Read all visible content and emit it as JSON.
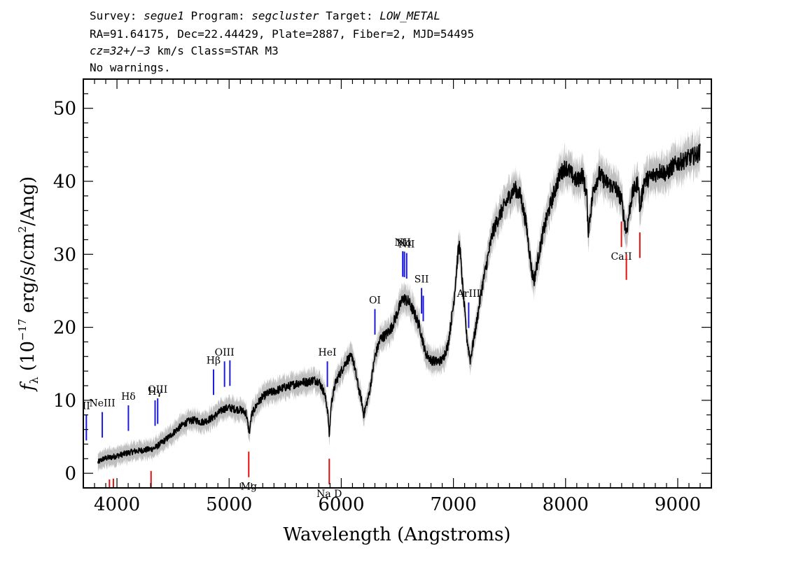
{
  "header": {
    "survey_label": "Survey:",
    "survey": "segue1",
    "program_label": "Program:",
    "program": "segcluster",
    "target_label": "Target:",
    "target": "LOW_METAL",
    "line2": "RA=91.64175, Dec=22.44429, Plate=2887, Fiber=2, MJD=54495",
    "cz": "cz=32+/−3",
    "cz_rest": " km/s Class=STAR M3",
    "warnings": "No warnings."
  },
  "colors": {
    "flux": "#000000",
    "error": "#bfbfbf",
    "emission_lines": "#1a1adc",
    "absorption_lines": "#e01010",
    "axes": "#000000"
  },
  "chart_data": {
    "type": "line",
    "xlabel": "Wavelength (Angstroms)",
    "ylabel_parts": {
      "f": "f",
      "sub": "λ",
      "pre": "(10",
      "exp1": "−17",
      "mid": " erg/s/cm",
      "exp2": "2",
      "post": "/Ang)"
    },
    "xlim": [
      3700,
      9300
    ],
    "ylim": [
      -2,
      54
    ],
    "xticks": [
      4000,
      5000,
      6000,
      7000,
      8000,
      9000
    ],
    "yticks": [
      0,
      10,
      20,
      30,
      40,
      50
    ],
    "grid": false,
    "series": [
      {
        "values_description_free": true,
        "x": [
          3830,
          3880,
          3950,
          4000,
          4050,
          4100,
          4150,
          4200,
          4250,
          4300,
          4340,
          4400,
          4450,
          4500,
          4550,
          4600,
          4650,
          4700,
          4750,
          4800,
          4850,
          4900,
          4950,
          5000,
          5050,
          5100,
          5150,
          5180,
          5200,
          5250,
          5300,
          5350,
          5400,
          5450,
          5500,
          5550,
          5600,
          5650,
          5700,
          5750,
          5800,
          5850,
          5880,
          5893,
          5910,
          5950,
          6000,
          6050,
          6100,
          6150,
          6180,
          6200,
          6250,
          6300,
          6350,
          6400,
          6450,
          6500,
          6550,
          6600,
          6650,
          6700,
          6750,
          6800,
          6850,
          6900,
          6950,
          7000,
          7040,
          7055,
          7080,
          7120,
          7150,
          7200,
          7250,
          7300,
          7350,
          7400,
          7450,
          7500,
          7550,
          7600,
          7650,
          7700,
          7720,
          7750,
          7800,
          7850,
          7900,
          7950,
          8000,
          8050,
          8100,
          8150,
          8190,
          8200,
          8250,
          8300,
          8350,
          8400,
          8450,
          8498,
          8520,
          8542,
          8580,
          8600,
          8650,
          8662,
          8700,
          8750,
          8800,
          8850,
          8900,
          8950,
          9000,
          9050,
          9100,
          9150,
          9200
        ],
        "y": [
          1.5,
          2.0,
          2.2,
          2.4,
          2.6,
          2.8,
          3.0,
          3.1,
          3.2,
          3.3,
          3.5,
          4.2,
          4.8,
          5.5,
          6.2,
          6.8,
          7.2,
          7.3,
          7.0,
          7.2,
          7.6,
          8.2,
          8.8,
          9.0,
          8.8,
          8.7,
          8.3,
          5.5,
          8.0,
          9.5,
          10.5,
          11.0,
          11.2,
          11.5,
          11.8,
          12.0,
          12.3,
          12.5,
          12.5,
          12.8,
          12.6,
          11.0,
          8.5,
          5.0,
          9.5,
          12.5,
          14.0,
          15.5,
          16.0,
          12.0,
          10.0,
          8.0,
          11.0,
          16.0,
          18.5,
          19.0,
          20.0,
          22.0,
          24.0,
          23.5,
          22.0,
          20.0,
          16.5,
          15.5,
          15.3,
          15.5,
          17.5,
          23.0,
          30.0,
          31.5,
          26.0,
          18.5,
          15.5,
          20.0,
          25.0,
          29.0,
          33.0,
          35.0,
          36.5,
          38.0,
          39.0,
          38.0,
          34.0,
          27.5,
          26.5,
          29.0,
          33.0,
          36.0,
          38.5,
          41.0,
          42.0,
          41.0,
          40.0,
          41.0,
          38.0,
          33.0,
          39.0,
          41.0,
          40.0,
          39.5,
          39.0,
          37.5,
          35.0,
          33.0,
          37.0,
          38.5,
          40.0,
          36.0,
          40.0,
          40.5,
          41.0,
          41.5,
          41.0,
          42.0,
          42.5,
          42.8,
          43.2,
          43.5,
          44.0
        ]
      }
    ],
    "line_markers": [
      {
        "label": "Na D",
        "wavelength": 5893,
        "kind": "absorption"
      },
      {
        "label": "Mg",
        "wavelength": 5175,
        "kind": "absorption"
      },
      {
        "label": "CaII",
        "wavelength": 8498,
        "kind": "absorption"
      },
      {
        "label": "",
        "wavelength": 8542,
        "kind": "absorption"
      },
      {
        "label": "",
        "wavelength": 8662,
        "kind": "absorption"
      },
      {
        "label": "",
        "wavelength": 4304,
        "kind": "absorption"
      },
      {
        "label": "",
        "wavelength": 3933,
        "kind": "absorption"
      },
      {
        "label": "",
        "wavelength": 3968,
        "kind": "absorption"
      },
      {
        "label": "II",
        "wavelength": 3727,
        "kind": "emission"
      },
      {
        "label": "NeIII",
        "wavelength": 3869,
        "kind": "emission"
      },
      {
        "label": "Hδ",
        "wavelength": 4102,
        "kind": "emission"
      },
      {
        "label": "Hγ",
        "wavelength": 4340,
        "kind": "emission"
      },
      {
        "label": "OIII",
        "wavelength": 4363,
        "kind": "emission"
      },
      {
        "label": "Hβ",
        "wavelength": 4861,
        "kind": "emission"
      },
      {
        "label": "OIII",
        "wavelength": 4959,
        "kind": "emission"
      },
      {
        "label": "",
        "wavelength": 5007,
        "kind": "emission"
      },
      {
        "label": "HeI",
        "wavelength": 5876,
        "kind": "emission"
      },
      {
        "label": "OI",
        "wavelength": 6300,
        "kind": "emission"
      },
      {
        "label": "NII",
        "wavelength": 6548,
        "kind": "emission"
      },
      {
        "label": "Hα",
        "wavelength": 6563,
        "kind": "emission"
      },
      {
        "label": "NII",
        "wavelength": 6583,
        "kind": "emission"
      },
      {
        "label": "SII",
        "wavelength": 6716,
        "kind": "emission"
      },
      {
        "label": "",
        "wavelength": 6731,
        "kind": "emission"
      },
      {
        "label": "ArIII",
        "wavelength": 7136,
        "kind": "emission"
      }
    ]
  }
}
